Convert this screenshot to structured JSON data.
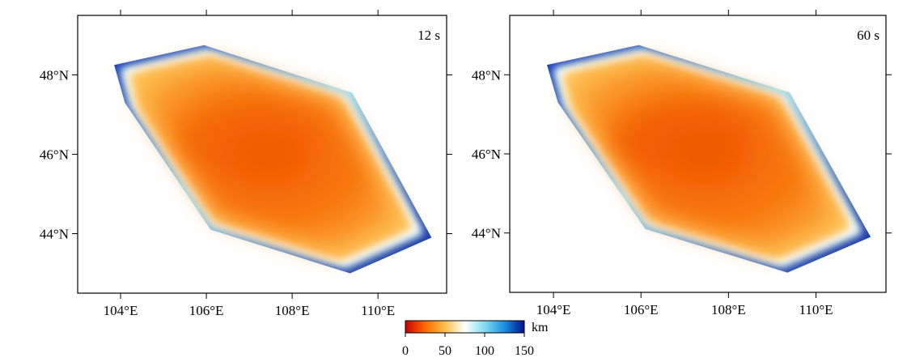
{
  "maps": [
    {
      "period_label": "12 s"
    },
    {
      "period_label": "60 s"
    }
  ],
  "lat_labels": [
    "48°N",
    "46°N",
    "44°N"
  ],
  "lon_labels": [
    "104°E",
    "106°E",
    "108°E",
    "110°E"
  ],
  "colorbar": {
    "unit": "km",
    "ticks": [
      "0",
      "50",
      "100",
      "150"
    ],
    "min": 0,
    "max": 150,
    "colors": [
      "#c80000",
      "#ff6a00",
      "#ffc04a",
      "#ffffff",
      "#7fdcf0",
      "#1a8fe0",
      "#00108c"
    ]
  },
  "map_extent": {
    "lon_min": 103.0,
    "lon_max": 111.6,
    "lat_min": 42.5,
    "lat_max": 49.5
  },
  "region_outline": [
    [
      103.85,
      48.25
    ],
    [
      105.95,
      48.75
    ],
    [
      109.4,
      47.55
    ],
    [
      111.25,
      43.9
    ],
    [
      109.35,
      43.0
    ],
    [
      106.1,
      44.1
    ],
    [
      104.1,
      47.3
    ]
  ],
  "map_values": {
    "interior_depth_km": 35,
    "boundary_depth_km": 150
  }
}
